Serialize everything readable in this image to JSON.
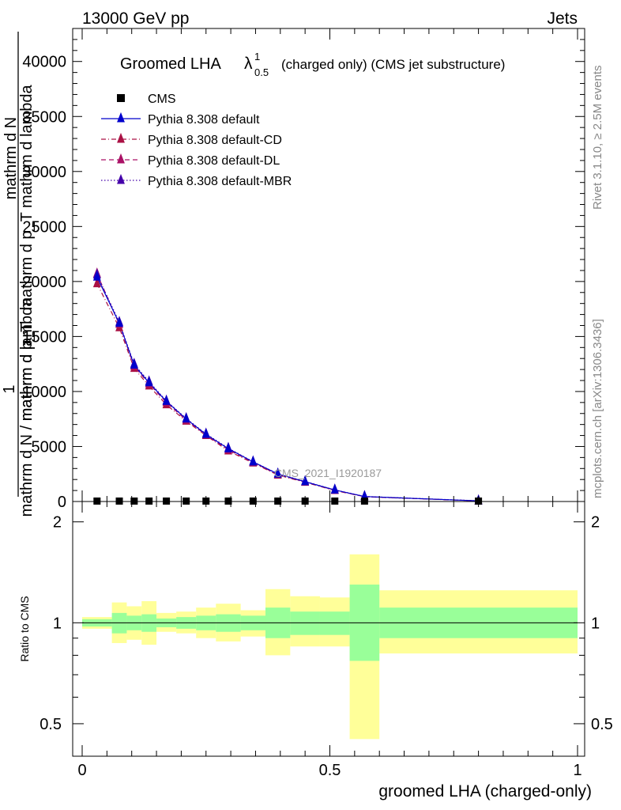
{
  "header": {
    "left": "13000 GeV pp",
    "right": "Jets"
  },
  "side_labels": {
    "rivet": "Rivet 3.1.10, ≥ 2.5M events",
    "mcplots": "mcplots.cern.ch [arXiv:1306.3436]"
  },
  "watermark": "CMS_2021_I1920187",
  "colors": {
    "cms": "#000000",
    "default": "#0000cc",
    "default_cd": "#aa1144",
    "default_dl": "#aa1166",
    "default_mbr": "#4400aa",
    "band_inner": "#99ff99",
    "band_outer": "#ffff99"
  },
  "chart_data": [
    {
      "type": "line",
      "title_main": "Groomed LHA",
      "title_symbol": "λ",
      "title_sup": "1",
      "title_sub": "0.5",
      "title_rest": "(charged only) (CMS jet substructure)",
      "ylabel_parts": [
        "1",
        "mathrm d N",
        "mathrm d p_T",
        "mathrm d p_T mathrm d lambda",
        "mathrm d N / mathrm d lambda"
      ],
      "xlim": [
        0,
        1
      ],
      "ylim": [
        0,
        43000
      ],
      "yticks": [
        0,
        5000,
        10000,
        15000,
        20000,
        25000,
        30000,
        35000,
        40000
      ],
      "ytick_labels": [
        "0",
        "5000",
        "10000",
        "15000",
        "20000",
        "25000",
        "30000",
        "35000",
        "40000"
      ],
      "x": [
        0.03,
        0.075,
        0.105,
        0.135,
        0.17,
        0.21,
        0.25,
        0.295,
        0.345,
        0.395,
        0.45,
        0.51,
        0.57,
        0.8
      ],
      "legend": [
        {
          "label": "CMS",
          "style": "marker"
        },
        {
          "label": "Pythia 8.308 default",
          "style": "solid"
        },
        {
          "label": "Pythia 8.308 default-CD",
          "style": "dashdot"
        },
        {
          "label": "Pythia 8.308 default-DL",
          "style": "dash"
        },
        {
          "label": "Pythia 8.308 default-MBR",
          "style": "dot"
        }
      ],
      "series": [
        {
          "name": "CMS",
          "values": [
            40,
            40,
            40,
            40,
            40,
            40,
            40,
            40,
            40,
            40,
            40,
            40,
            40,
            40
          ]
        },
        {
          "name": "Pythia 8.308 default",
          "values": [
            20400,
            16200,
            12400,
            10800,
            9100,
            7500,
            6100,
            4800,
            3600,
            2500,
            1800,
            1050,
            450,
            60
          ]
        },
        {
          "name": "Pythia 8.308 default-CD",
          "values": [
            19800,
            15800,
            12100,
            10500,
            8800,
            7300,
            6000,
            4600,
            3500,
            2400,
            1750,
            1000,
            430,
            55
          ]
        },
        {
          "name": "Pythia 8.308 default-DL",
          "values": [
            20700,
            16100,
            12300,
            10700,
            9000,
            7400,
            6050,
            4700,
            3550,
            2450,
            1780,
            1020,
            440,
            58
          ]
        },
        {
          "name": "Pythia 8.308 default-MBR",
          "values": [
            20600,
            16300,
            12500,
            10900,
            9150,
            7550,
            6150,
            4850,
            3620,
            2520,
            1820,
            1060,
            460,
            62
          ]
        }
      ]
    },
    {
      "type": "area",
      "ylabel": "Ratio to CMS",
      "xlabel": "groomed LHA (charged-only)",
      "xlim": [
        0,
        1
      ],
      "ylim": [
        0.4,
        2.3
      ],
      "log_y": true,
      "xticks": [
        0,
        0.5,
        1
      ],
      "xtick_labels": [
        "0",
        "0.5",
        "1"
      ],
      "yticks": [
        0.5,
        1,
        2
      ],
      "ytick_labels": [
        "0.5",
        "1",
        "2"
      ],
      "bins": [
        {
          "lo": 0.0,
          "hi": 0.06,
          "inner": [
            0.975,
            1.025
          ],
          "outer": [
            0.96,
            1.04
          ]
        },
        {
          "lo": 0.06,
          "hi": 0.09,
          "inner": [
            0.93,
            1.07
          ],
          "outer": [
            0.87,
            1.15
          ]
        },
        {
          "lo": 0.09,
          "hi": 0.12,
          "inner": [
            0.95,
            1.05
          ],
          "outer": [
            0.89,
            1.12
          ]
        },
        {
          "lo": 0.12,
          "hi": 0.15,
          "inner": [
            0.94,
            1.06
          ],
          "outer": [
            0.86,
            1.16
          ]
        },
        {
          "lo": 0.15,
          "hi": 0.19,
          "inner": [
            0.97,
            1.03
          ],
          "outer": [
            0.94,
            1.07
          ]
        },
        {
          "lo": 0.19,
          "hi": 0.23,
          "inner": [
            0.96,
            1.04
          ],
          "outer": [
            0.93,
            1.08
          ]
        },
        {
          "lo": 0.23,
          "hi": 0.27,
          "inner": [
            0.95,
            1.05
          ],
          "outer": [
            0.9,
            1.11
          ]
        },
        {
          "lo": 0.27,
          "hi": 0.32,
          "inner": [
            0.94,
            1.06
          ],
          "outer": [
            0.88,
            1.14
          ]
        },
        {
          "lo": 0.32,
          "hi": 0.37,
          "inner": [
            0.95,
            1.05
          ],
          "outer": [
            0.91,
            1.09
          ]
        },
        {
          "lo": 0.37,
          "hi": 0.42,
          "inner": [
            0.9,
            1.11
          ],
          "outer": [
            0.8,
            1.26
          ]
        },
        {
          "lo": 0.42,
          "hi": 0.48,
          "inner": [
            0.92,
            1.08
          ],
          "outer": [
            0.85,
            1.2
          ]
        },
        {
          "lo": 0.48,
          "hi": 0.54,
          "inner": [
            0.92,
            1.08
          ],
          "outer": [
            0.85,
            1.19
          ]
        },
        {
          "lo": 0.54,
          "hi": 0.6,
          "inner": [
            0.77,
            1.3
          ],
          "outer": [
            0.45,
            1.6
          ]
        },
        {
          "lo": 0.6,
          "hi": 1.0,
          "inner": [
            0.9,
            1.11
          ],
          "outer": [
            0.81,
            1.25
          ]
        }
      ],
      "reference": 1
    }
  ]
}
